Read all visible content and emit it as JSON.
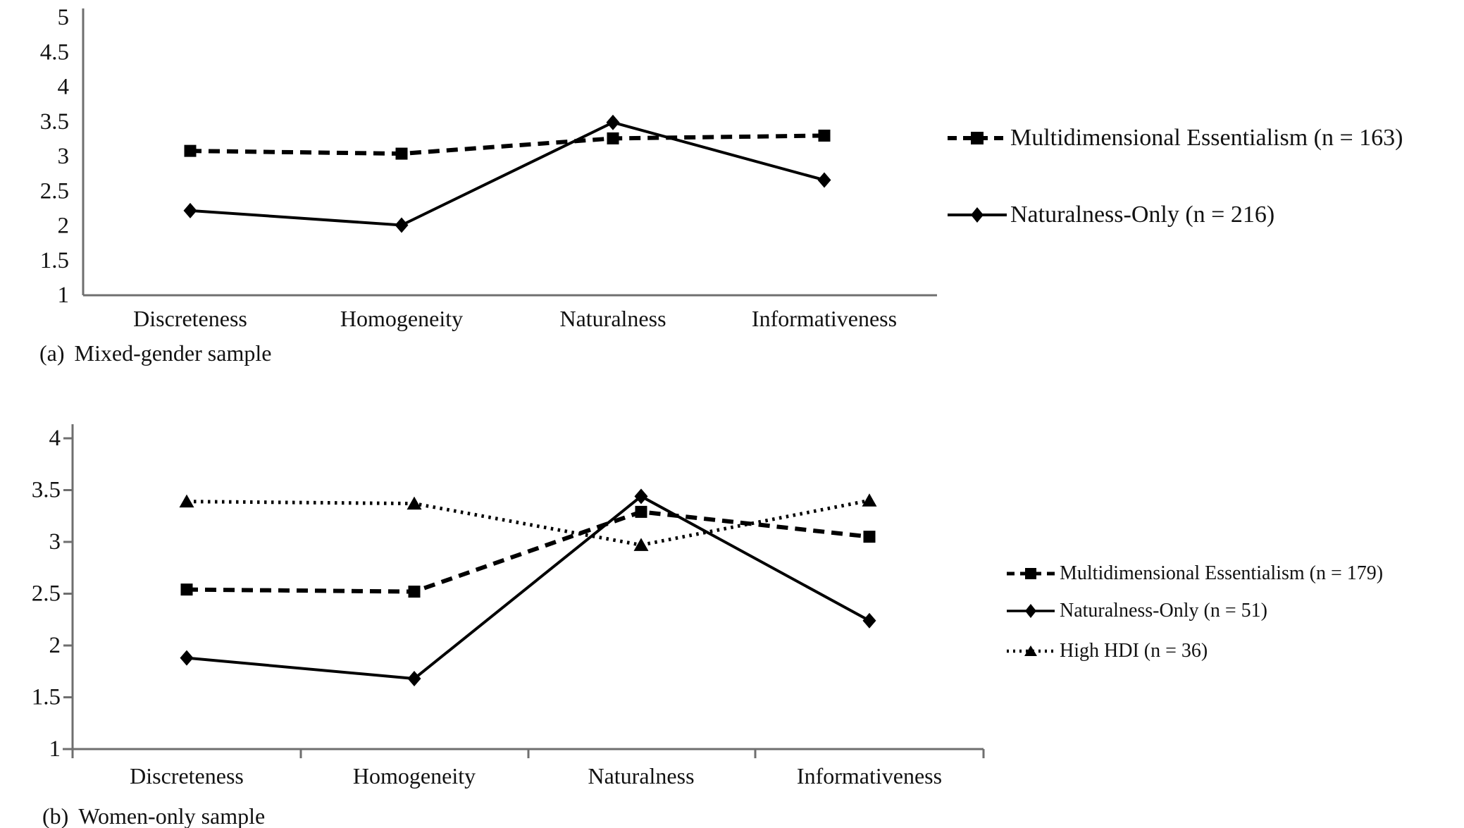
{
  "page": {
    "background": "#ffffff",
    "series_color": "#000000",
    "axis_color": "#6f6f6f",
    "text_color": "#121212"
  },
  "chart_data": [
    {
      "id": "a",
      "type": "line",
      "caption_label": "(a)",
      "caption": "Mixed-gender sample",
      "categories": [
        "Discreteness",
        "Homogeneity",
        "Naturalness",
        "Informativeness"
      ],
      "ylim": [
        1,
        5
      ],
      "ytick_step": 0.5,
      "ytick_labels": [
        "1",
        "1.5",
        "2",
        "2.5",
        "3",
        "3.5",
        "4",
        "4.5",
        "5"
      ],
      "grid": false,
      "legend_position": "right",
      "series": [
        {
          "name": "Multidimensional Essentialism",
          "legend_label": "Multidimensional Essentialism (n = 163)",
          "n": 163,
          "marker": "square",
          "line_style": "dashed",
          "values": [
            3.08,
            3.04,
            3.26,
            3.3
          ]
        },
        {
          "name": "Naturalness-Only",
          "legend_label": "Naturalness-Only (n = 216)",
          "n": 216,
          "marker": "diamond",
          "line_style": "solid",
          "values": [
            2.22,
            2.01,
            3.49,
            2.66
          ]
        }
      ]
    },
    {
      "id": "b",
      "type": "line",
      "caption_label": "(b)",
      "caption": "Women-only sample",
      "categories": [
        "Discreteness",
        "Homogeneity",
        "Naturalness",
        "Informativeness"
      ],
      "ylim": [
        1,
        4
      ],
      "ytick_step": 0.5,
      "ytick_labels": [
        "1",
        "1.5",
        "2",
        "2.5",
        "3",
        "3.5",
        "4"
      ],
      "grid": false,
      "legend_position": "right",
      "series": [
        {
          "name": "Multidimensional Essentialism",
          "legend_label": "Multidimensional Essentialism (n = 179)",
          "n": 179,
          "marker": "square",
          "line_style": "dashed",
          "values": [
            2.54,
            2.52,
            3.29,
            3.05
          ]
        },
        {
          "name": "Naturalness-Only",
          "legend_label": "Naturalness-Only (n = 51)",
          "n": 51,
          "marker": "diamond",
          "line_style": "solid",
          "values": [
            1.88,
            1.68,
            3.44,
            2.24
          ]
        },
        {
          "name": "High HDI",
          "legend_label": "High HDI (n = 36)",
          "n": 36,
          "marker": "triangle",
          "line_style": "dotted",
          "values": [
            3.39,
            3.37,
            2.97,
            3.4
          ]
        }
      ]
    }
  ]
}
